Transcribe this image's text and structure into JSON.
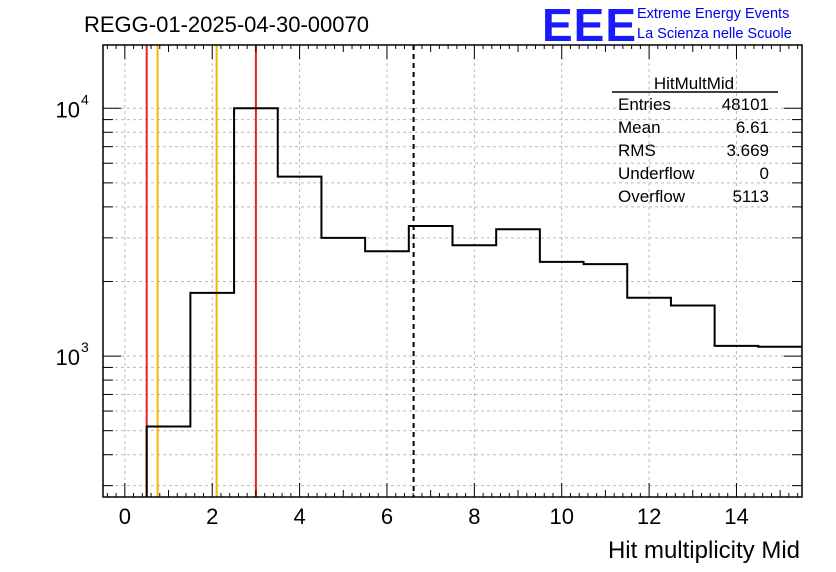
{
  "header": {
    "run_title": "REGG-01-2025-04-30-00070",
    "logo": "EEE",
    "logo_line1": "Extreme Energy Events",
    "logo_line2": "La Scienza nelle Scuole"
  },
  "stats": {
    "name": "HitMultMid",
    "rows": [
      {
        "label": "Entries",
        "value": "48101"
      },
      {
        "label": "Mean",
        "value": "6.61"
      },
      {
        "label": "RMS",
        "value": "3.669"
      },
      {
        "label": "Underflow",
        "value": "0"
      },
      {
        "label": "Overflow",
        "value": "5113"
      }
    ]
  },
  "colors": {
    "red_line": "#e8231c",
    "orange_line": "#f2b705",
    "grid": "#bbbbbb",
    "histogram": "#000000"
  },
  "chart_data": {
    "type": "histogram",
    "title": "REGG-01-2025-04-30-00070",
    "xlabel": "Hit multiplicity Mid",
    "ylabel": "",
    "yscale": "log",
    "xlim": [
      -0.5,
      15.5
    ],
    "ylim": [
      270,
      18000
    ],
    "x_ticks": [
      "0",
      "2",
      "4",
      "6",
      "8",
      "10",
      "12",
      "14"
    ],
    "y_tick_labels": [
      {
        "value": 1000,
        "base": "10",
        "exp": "3"
      },
      {
        "value": 10000,
        "base": "10",
        "exp": "4"
      }
    ],
    "bin_edges": [
      0.5,
      1.5,
      2.5,
      3.5,
      4.5,
      5.5,
      6.5,
      7.5,
      8.5,
      9.5,
      10.5,
      11.5,
      12.5,
      13.5,
      14.5,
      15.5
    ],
    "bin_values": [
      520,
      1800,
      10000,
      5300,
      3000,
      2650,
      3350,
      2800,
      3250,
      2400,
      2350,
      1720,
      1600,
      1100,
      1090
    ],
    "vertical_lines": [
      {
        "x": 0.5,
        "color": "red"
      },
      {
        "x": 0.75,
        "color": "orange"
      },
      {
        "x": 2.1,
        "color": "orange"
      },
      {
        "x": 3.0,
        "color": "red"
      }
    ],
    "mean_line": 6.61,
    "grid": true
  }
}
